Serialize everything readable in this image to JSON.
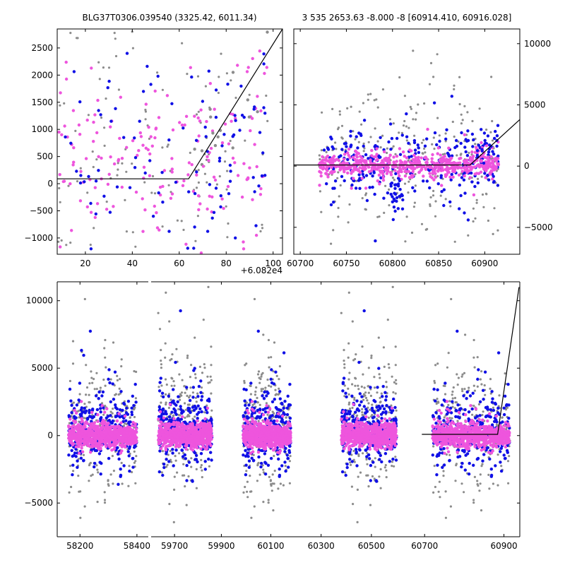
{
  "colors": {
    "gray": "#8c8c8c",
    "blue": "#1010e6",
    "pink": "#ee55dd",
    "model": "#000000"
  },
  "chart_data": [
    {
      "id": "zoom",
      "type": "scatter",
      "title": "BLG37T0306.039540 (3325.42, 6011.34)",
      "xlim": [
        8,
        104
      ],
      "ylim": [
        -1300,
        2850
      ],
      "x_offset_label": "+6.082e4",
      "x_ticks": [
        20,
        40,
        60,
        80,
        100
      ],
      "y_ticks": [
        -1000,
        -500,
        0,
        500,
        1000,
        1500,
        2000,
        2500
      ],
      "model": {
        "x": [
          8,
          64,
          104
        ],
        "y": [
          90,
          90,
          2850
        ]
      },
      "scatter": {
        "gray": {
          "n": 150,
          "xr": [
            8,
            98
          ],
          "center": 500,
          "spread": 1500
        },
        "blue": {
          "n": 90,
          "xr": [
            8,
            97
          ],
          "center": 350,
          "spread": 1000
        },
        "pink": {
          "n": 170,
          "xr": [
            8,
            98
          ],
          "center": 300,
          "spread": 700
        }
      }
    },
    {
      "id": "season",
      "type": "scatter",
      "title": "3 535 2653.63 -8.000 -8 [60914.410, 60916.028]",
      "xlim": [
        60693,
        60938
      ],
      "ylim": [
        -7200,
        11200
      ],
      "y_axis_side": "right",
      "x_ticks": [
        60700,
        60750,
        60800,
        60850,
        60900
      ],
      "y_ticks": [
        -5000,
        0,
        5000,
        10000
      ],
      "model": {
        "x": [
          60693,
          60884,
          60938
        ],
        "y": [
          90,
          90,
          3800
        ]
      },
      "scatter": {
        "gray": {
          "n": 260,
          "xr": [
            60720,
            60915
          ],
          "center": 600,
          "spread": 2800
        },
        "blue": {
          "n": 260,
          "xr": [
            60725,
            60915
          ],
          "center": 100,
          "spread": 1500
        },
        "pink": {
          "n": 600,
          "xr": [
            60720,
            60915
          ],
          "center": 50,
          "spread": 400
        }
      }
    },
    {
      "id": "full",
      "type": "scatter",
      "title": "",
      "ylim": [
        -7500,
        11400
      ],
      "y_ticks": [
        -5000,
        0,
        5000,
        10000
      ],
      "segments": [
        {
          "xlim": [
            58120,
            58440
          ],
          "x_ticks": [
            58200,
            58400
          ]
        },
        {
          "xlim": [
            59600,
            59950
          ],
          "x_ticks": [
            59700,
            59900
          ]
        },
        {
          "xlim": [
            59950,
            60680
          ],
          "x_ticks": [
            60100,
            60300,
            60500
          ]
        },
        {
          "xlim": [
            60680,
            60940
          ],
          "x_ticks": [
            60700,
            60900
          ]
        }
      ],
      "seasons": [
        {
          "xr": [
            58160,
            58400
          ]
        },
        {
          "xr": [
            59630,
            59860
          ]
        },
        {
          "xr": [
            59990,
            60180
          ]
        },
        {
          "xr": [
            60380,
            60600
          ]
        },
        {
          "xr": [
            60720,
            60915
          ]
        }
      ],
      "model": {
        "x": [
          60693,
          60884,
          60938
        ],
        "y": [
          90,
          90,
          11000
        ]
      }
    }
  ]
}
